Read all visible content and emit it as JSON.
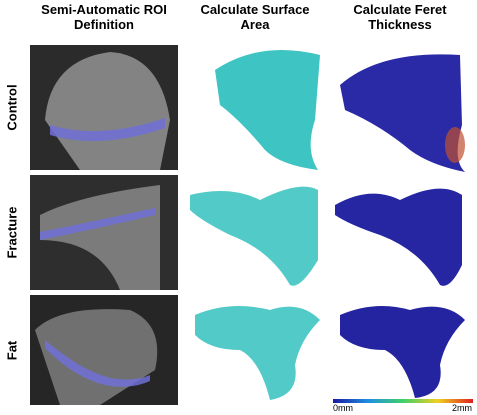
{
  "columns": [
    "Semi-Automatic ROI Definition",
    "Calculate Surface Area",
    "Calculate Feret Thickness"
  ],
  "rows": [
    "Control",
    "Fracture",
    "Fat"
  ],
  "colorbar": {
    "min_label": "0mm",
    "max_label": "2mm"
  }
}
